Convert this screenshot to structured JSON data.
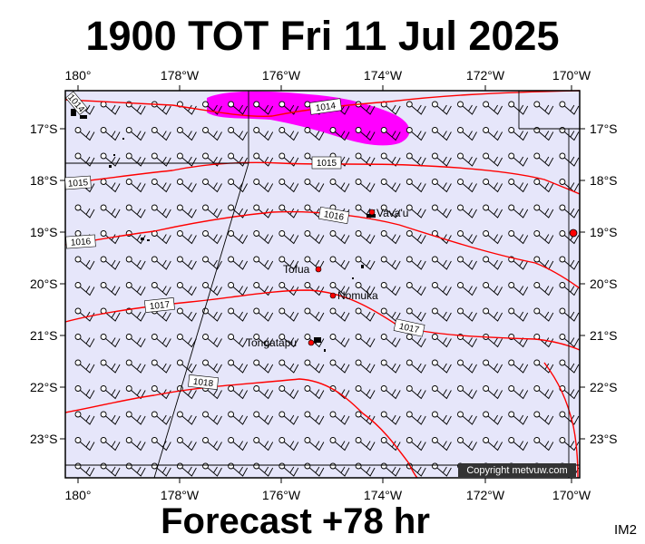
{
  "header": {
    "title": "1900 TOT Fri 11 Jul 2025"
  },
  "footer": {
    "forecast": "Forecast +78 hr",
    "image_id": "IM2"
  },
  "map": {
    "copyright": "Copyright metvuw.com",
    "colors": {
      "background": "#e6e6fa",
      "isobar": "#ff0000",
      "high_wind": "#ff00ff",
      "place": "#ff0000"
    },
    "lon_ticks": [
      "180°",
      "178°W",
      "176°W",
      "174°W",
      "172°W",
      "170°W"
    ],
    "lat_ticks": [
      "17°S",
      "18°S",
      "19°S",
      "20°S",
      "21°S",
      "22°S",
      "23°S"
    ],
    "isobar_labels": [
      "1014",
      "1015",
      "1015",
      "1016",
      "1016",
      "1017",
      "1017",
      "1018",
      "1014"
    ],
    "places": [
      {
        "name": "Vava'u"
      },
      {
        "name": "Tofua"
      },
      {
        "name": "Nomuka"
      },
      {
        "name": "Tongatapu"
      }
    ],
    "wind_barbs": "southeast trade winds across the domain"
  }
}
